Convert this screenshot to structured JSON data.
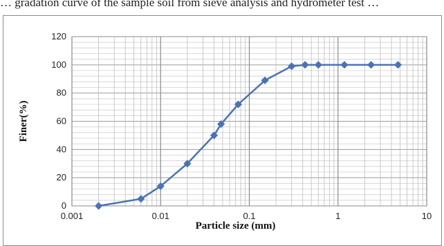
{
  "caption": "… gradation curve of the sample soil from sieve analysis and hydrometer test …",
  "chart_data": {
    "type": "scatter",
    "mode": "lines+markers",
    "xscale": "log",
    "xlim": [
      0.001,
      10
    ],
    "ylim": [
      0,
      120
    ],
    "xticks": [
      "0.001",
      "0.01",
      "0.1",
      "1",
      "10"
    ],
    "yticks": [
      "0",
      "20",
      "40",
      "60",
      "80",
      "100",
      "120"
    ],
    "xlabel": "Particle size (mm)",
    "ylabel": "Finer(%)",
    "grid": true,
    "series": [
      {
        "x": [
          0.002,
          0.006,
          0.01,
          0.02,
          0.04,
          0.048,
          0.075,
          0.15,
          0.3,
          0.425,
          0.6,
          1.18,
          2.36,
          4.75
        ],
        "y": [
          0,
          5,
          14,
          30,
          50,
          58,
          72,
          89,
          99,
          100,
          100,
          100,
          100,
          100
        ],
        "color": "#4a73b5"
      }
    ]
  }
}
